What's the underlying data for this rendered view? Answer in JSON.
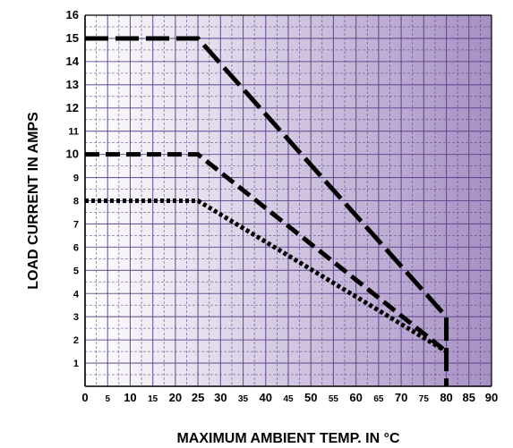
{
  "chart_data": {
    "type": "line",
    "title": "",
    "xlabel": "MAXIMUM AMBIENT TEMP. IN °C",
    "ylabel": "LOAD CURRENT IN AMPS",
    "xlim": [
      0,
      90
    ],
    "ylim": [
      0,
      16
    ],
    "x_ticks": [
      0,
      5,
      10,
      15,
      20,
      25,
      30,
      35,
      40,
      45,
      50,
      55,
      60,
      65,
      70,
      75,
      80,
      85,
      90
    ],
    "y_ticks": [
      1,
      2,
      3,
      4,
      5,
      6,
      7,
      8,
      9,
      10,
      11,
      12,
      13,
      14,
      15,
      16
    ],
    "grid": true,
    "background_gradient": [
      "#ffffff",
      "#a690c4"
    ],
    "grid_color": "#5a3f86",
    "series": [
      {
        "style": "long-dash",
        "x": [
          0,
          25,
          80,
          80
        ],
        "y": [
          15,
          15,
          3,
          0
        ]
      },
      {
        "style": "dash",
        "x": [
          0,
          25,
          80
        ],
        "y": [
          10,
          10,
          1.5
        ]
      },
      {
        "style": "dotted",
        "x": [
          0,
          25,
          80
        ],
        "y": [
          8,
          8,
          1.5
        ]
      }
    ]
  }
}
